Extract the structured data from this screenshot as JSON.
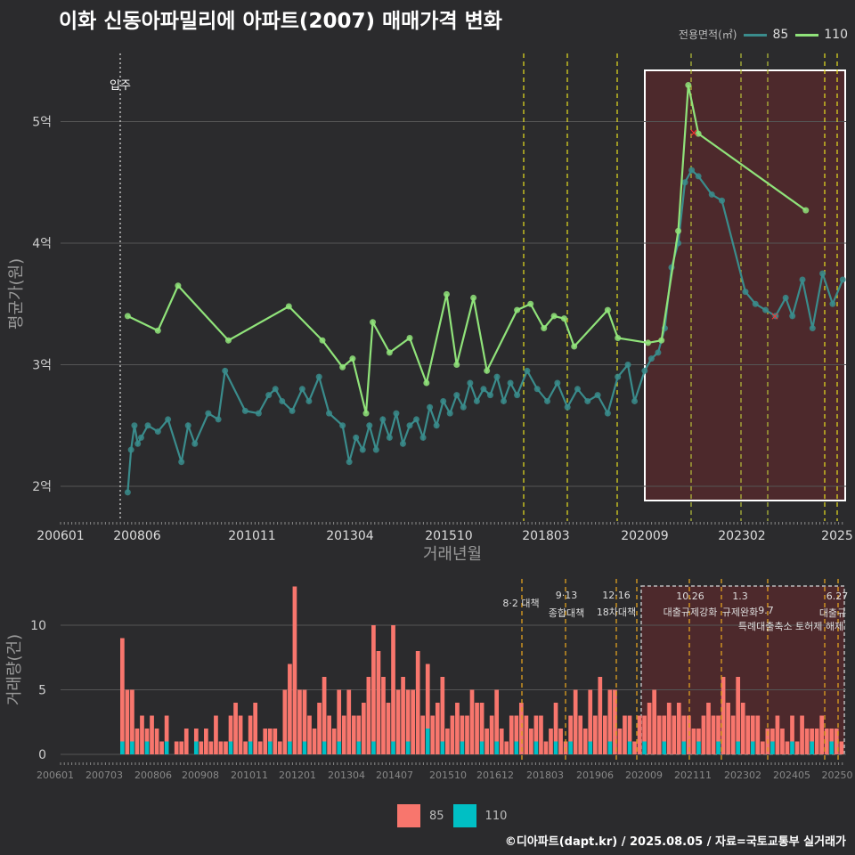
{
  "title": "이화 신동아파밀리에 아파트(2007) 매매가격 변화",
  "legend_top": {
    "title": "전용면적(㎡)",
    "items": [
      {
        "label": "85",
        "color": "#3a8c8c"
      },
      {
        "label": "110",
        "color": "#90e37a"
      }
    ]
  },
  "legend_bottom": {
    "items": [
      {
        "label": "85",
        "color": "#f8766d"
      },
      {
        "label": "110",
        "color": "#00bfc4"
      }
    ]
  },
  "credit": "©디아파트(dapt.kr) / 2025.08.05 / 자료=국토교통부 실거래가",
  "chart_data": [
    {
      "type": "line",
      "xlabel": "거래년월",
      "ylabel": "평균가(원)",
      "x_ticks": [
        "200601",
        "200806",
        "201011",
        "201304",
        "201510",
        "201803",
        "202009",
        "202302",
        "2025"
      ],
      "y_ticks": [
        "2억",
        "3억",
        "4억",
        "5억"
      ],
      "ylim": [
        1.85,
        5.45
      ],
      "annotation": "입주",
      "series": [
        {
          "name": "85",
          "color": "#3a8c8c",
          "points": [
            [
              "2007-09",
              1.95
            ],
            [
              "2007-10",
              2.3
            ],
            [
              "2007-11",
              2.5
            ],
            [
              "2007-12",
              2.35
            ],
            [
              "2008-01",
              2.4
            ],
            [
              "2008-03",
              2.5
            ],
            [
              "2008-06",
              2.45
            ],
            [
              "2008-09",
              2.55
            ],
            [
              "2009-01",
              2.2
            ],
            [
              "2009-03",
              2.5
            ],
            [
              "2009-05",
              2.35
            ],
            [
              "2009-09",
              2.6
            ],
            [
              "2009-12",
              2.55
            ],
            [
              "2010-02",
              2.95
            ],
            [
              "2010-08",
              2.62
            ],
            [
              "2010-12",
              2.6
            ],
            [
              "2011-03",
              2.75
            ],
            [
              "2011-05",
              2.8
            ],
            [
              "2011-07",
              2.7
            ],
            [
              "2011-10",
              2.62
            ],
            [
              "2012-01",
              2.8
            ],
            [
              "2012-03",
              2.7
            ],
            [
              "2012-06",
              2.9
            ],
            [
              "2012-09",
              2.6
            ],
            [
              "2013-01",
              2.5
            ],
            [
              "2013-03",
              2.2
            ],
            [
              "2013-05",
              2.4
            ],
            [
              "2013-07",
              2.3
            ],
            [
              "2013-09",
              2.5
            ],
            [
              "2013-11",
              2.3
            ],
            [
              "2014-01",
              2.55
            ],
            [
              "2014-03",
              2.4
            ],
            [
              "2014-05",
              2.6
            ],
            [
              "2014-07",
              2.35
            ],
            [
              "2014-09",
              2.5
            ],
            [
              "2014-11",
              2.55
            ],
            [
              "2015-01",
              2.4
            ],
            [
              "2015-03",
              2.65
            ],
            [
              "2015-05",
              2.5
            ],
            [
              "2015-07",
              2.7
            ],
            [
              "2015-09",
              2.6
            ],
            [
              "2015-11",
              2.75
            ],
            [
              "2016-01",
              2.65
            ],
            [
              "2016-03",
              2.85
            ],
            [
              "2016-05",
              2.7
            ],
            [
              "2016-07",
              2.8
            ],
            [
              "2016-09",
              2.75
            ],
            [
              "2016-11",
              2.9
            ],
            [
              "2017-01",
              2.7
            ],
            [
              "2017-03",
              2.85
            ],
            [
              "2017-05",
              2.75
            ],
            [
              "2017-08",
              2.95
            ],
            [
              "2017-11",
              2.8
            ],
            [
              "2018-02",
              2.7
            ],
            [
              "2018-05",
              2.85
            ],
            [
              "2018-08",
              2.65
            ],
            [
              "2018-11",
              2.8
            ],
            [
              "2019-02",
              2.7
            ],
            [
              "2019-05",
              2.75
            ],
            [
              "2019-08",
              2.6
            ],
            [
              "2019-11",
              2.9
            ],
            [
              "2020-02",
              3.0
            ],
            [
              "2020-04",
              2.7
            ],
            [
              "2020-07",
              2.95
            ],
            [
              "2020-09",
              3.05
            ],
            [
              "2020-11",
              3.1
            ],
            [
              "2021-01",
              3.3
            ],
            [
              "2021-03",
              3.8
            ],
            [
              "2021-05",
              4.0
            ],
            [
              "2021-07",
              4.5
            ],
            [
              "2021-09",
              4.6
            ],
            [
              "2021-11",
              4.55
            ],
            [
              "2022-03",
              4.4
            ],
            [
              "2022-06",
              4.35
            ],
            [
              "2023-01",
              3.6
            ],
            [
              "2023-04",
              3.5
            ],
            [
              "2023-07",
              3.45
            ],
            [
              "2023-10",
              3.4
            ],
            [
              "2024-01",
              3.55
            ],
            [
              "2024-03",
              3.4
            ],
            [
              "2024-06",
              3.7
            ],
            [
              "2024-09",
              3.3
            ],
            [
              "2024-12",
              3.75
            ],
            [
              "2025-03",
              3.5
            ],
            [
              "2025-06",
              3.7
            ]
          ]
        },
        {
          "name": "110",
          "color": "#90e37a",
          "points": [
            [
              "2007-09",
              3.4
            ],
            [
              "2008-06",
              3.28
            ],
            [
              "2008-12",
              3.65
            ],
            [
              "2010-03",
              3.2
            ],
            [
              "2011-09",
              3.48
            ],
            [
              "2012-07",
              3.2
            ],
            [
              "2013-01",
              2.98
            ],
            [
              "2013-04",
              3.05
            ],
            [
              "2013-08",
              2.6
            ],
            [
              "2013-10",
              3.35
            ],
            [
              "2014-03",
              3.1
            ],
            [
              "2014-09",
              3.22
            ],
            [
              "2015-02",
              2.85
            ],
            [
              "2015-08",
              3.58
            ],
            [
              "2015-11",
              3.0
            ],
            [
              "2016-04",
              3.55
            ],
            [
              "2016-08",
              2.95
            ],
            [
              "2017-05",
              3.45
            ],
            [
              "2017-09",
              3.5
            ],
            [
              "2018-01",
              3.3
            ],
            [
              "2018-04",
              3.4
            ],
            [
              "2018-07",
              3.38
            ],
            [
              "2018-10",
              3.15
            ],
            [
              "2019-08",
              3.45
            ],
            [
              "2019-11",
              3.22
            ],
            [
              "2020-08",
              3.18
            ],
            [
              "2020-12",
              3.2
            ],
            [
              "2021-05",
              4.1
            ],
            [
              "2021-08",
              5.3
            ],
            [
              "2021-11",
              4.9
            ],
            [
              "2024-07",
              4.27
            ]
          ]
        }
      ]
    },
    {
      "type": "bar",
      "ylabel": "거래량(건)",
      "y_ticks": [
        "0",
        "5",
        "10"
      ],
      "ylim": [
        0,
        13
      ],
      "x_ticks": [
        "200601",
        "200703",
        "200806",
        "200908",
        "201011",
        "201201",
        "201304",
        "201407",
        "201510",
        "201612",
        "201803",
        "201906",
        "202009",
        "202111",
        "202302",
        "202405",
        "20250"
      ],
      "policies": [
        "8·2 대책",
        "9·13",
        "종합대책",
        "12·16",
        "18차대책",
        "10.26",
        "대출규제강화",
        "1.3",
        "규제완화",
        "9.7",
        "특례대출축소 토허제 해제",
        "6.27",
        "대출규"
      ],
      "series": [
        {
          "name": "85",
          "values": [
            8,
            5,
            4,
            2,
            3,
            1,
            3,
            2,
            1,
            2,
            0,
            1,
            1,
            2,
            0,
            1,
            1,
            2,
            1,
            3,
            1,
            1,
            2,
            4,
            3,
            1,
            2,
            4,
            1,
            2,
            1,
            2,
            1,
            5,
            6,
            13,
            5,
            4,
            3,
            2,
            4,
            5,
            3,
            2,
            4,
            3,
            5,
            3,
            2,
            4,
            6,
            9,
            8,
            6,
            4,
            9,
            5,
            6,
            4,
            5,
            8,
            3,
            5,
            3,
            4,
            5,
            2,
            3,
            4,
            2,
            3,
            5,
            4,
            3,
            2,
            3,
            4,
            2,
            1,
            3,
            2,
            4,
            3,
            2,
            2,
            3,
            1,
            2,
            3,
            2,
            1,
            2,
            5,
            3,
            2,
            4,
            3,
            6,
            3,
            4,
            5,
            2,
            3,
            2,
            1,
            3,
            2,
            4,
            5,
            3,
            2,
            4,
            3,
            4,
            2,
            3,
            2,
            1,
            3,
            4,
            3,
            2,
            6,
            4,
            3,
            5,
            4,
            3,
            2,
            3,
            1,
            2,
            1,
            3,
            2,
            1,
            2,
            1,
            3,
            2,
            1,
            2,
            3,
            2,
            1,
            2,
            1
          ]
        },
        {
          "name": "110",
          "values": [
            1,
            0,
            1,
            0,
            0,
            1,
            0,
            0,
            0,
            1,
            0,
            0,
            0,
            0,
            0,
            1,
            0,
            0,
            0,
            0,
            0,
            0,
            1,
            0,
            0,
            0,
            1,
            0,
            0,
            0,
            1,
            0,
            0,
            0,
            1,
            0,
            0,
            1,
            0,
            0,
            0,
            1,
            0,
            0,
            1,
            0,
            0,
            0,
            1,
            0,
            0,
            1,
            0,
            0,
            0,
            1,
            0,
            0,
            1,
            0,
            0,
            0,
            2,
            0,
            0,
            1,
            0,
            0,
            0,
            1,
            0,
            0,
            0,
            1,
            0,
            0,
            1,
            0,
            0,
            0,
            1,
            0,
            0,
            0,
            1,
            0,
            0,
            0,
            1,
            0,
            0,
            1,
            0,
            0,
            0,
            1,
            0,
            0,
            0,
            1,
            0,
            0,
            0,
            1,
            0,
            0,
            1,
            0,
            0,
            0,
            1,
            0,
            0,
            0,
            1,
            0,
            0,
            1,
            0,
            0,
            0,
            1,
            0,
            0,
            0,
            1,
            0,
            0,
            1,
            0,
            0,
            0,
            1,
            0,
            0,
            0,
            1,
            0,
            0,
            0,
            1,
            0,
            0,
            0,
            1,
            0,
            0
          ]
        }
      ]
    }
  ]
}
